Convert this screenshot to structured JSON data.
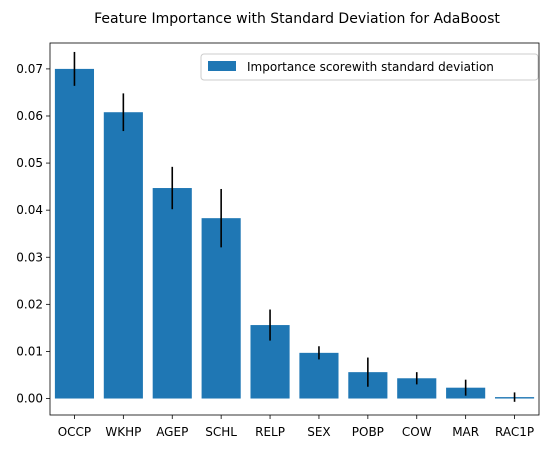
{
  "chart_data": {
    "type": "bar",
    "title": "Feature Importance with Standard Deviation for AdaBoost",
    "xlabel": "",
    "ylabel": "",
    "categories": [
      "OCCP",
      "WKHP",
      "AGEP",
      "SCHL",
      "RELP",
      "SEX",
      "POBP",
      "COW",
      "MAR",
      "RAC1P"
    ],
    "series": [
      {
        "name": "Importance scorewith standard deviation",
        "values": [
          0.07,
          0.0608,
          0.0447,
          0.0383,
          0.0156,
          0.0097,
          0.0056,
          0.0043,
          0.0023,
          0.0003
        ],
        "errors": [
          0.0036,
          0.004,
          0.0045,
          0.0062,
          0.0033,
          0.0014,
          0.0031,
          0.0013,
          0.0017,
          0.001
        ]
      }
    ],
    "ylim": [
      -0.0035,
      0.0755
    ],
    "yticks": [
      "0.00",
      "0.01",
      "0.02",
      "0.03",
      "0.04",
      "0.05",
      "0.06",
      "0.07"
    ],
    "legend_position": "top-right",
    "grid": false,
    "colors": {
      "bar": "#1f77b4",
      "error": "#000000",
      "axis": "#000000"
    }
  }
}
